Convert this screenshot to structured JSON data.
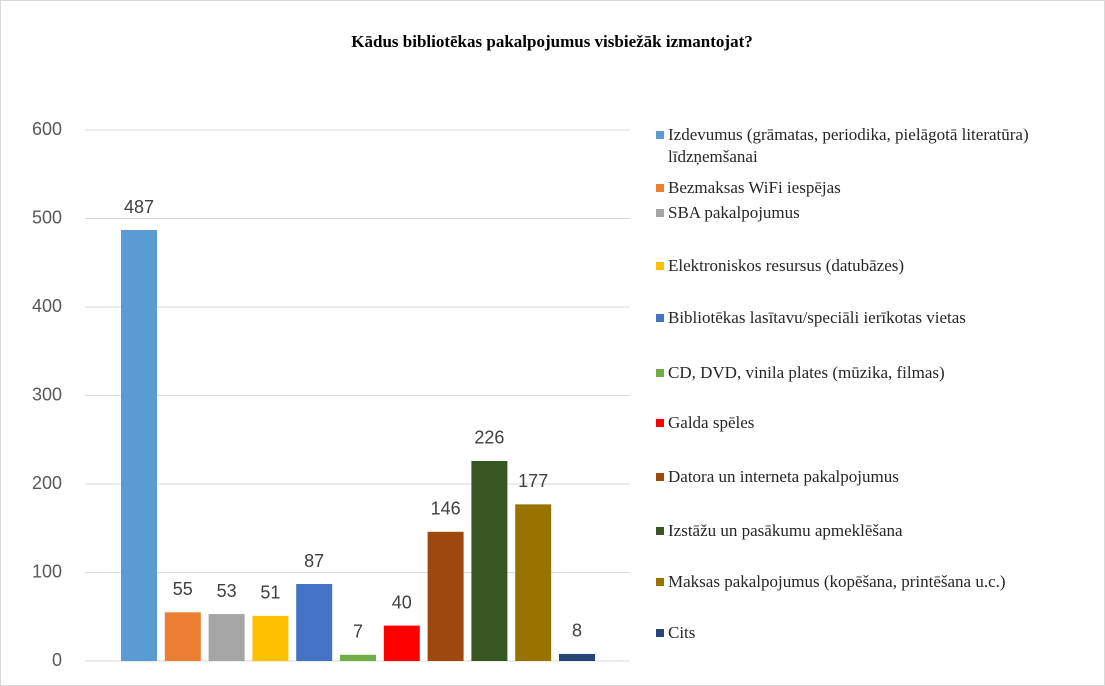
{
  "chart_data": {
    "type": "bar",
    "title": "Kādus bibliotēkas pakalpojumus visbiežāk izmantojat?",
    "ylim": [
      0,
      600
    ],
    "yticks": [
      0,
      100,
      200,
      300,
      400,
      500,
      600
    ],
    "grid": true,
    "legend": "right",
    "series": [
      {
        "name": "Izdevumus (grāmatas, periodika, pielāgotā literatūra) līdzņemšanai",
        "color": "#5b9bd5",
        "values": [
          487
        ]
      },
      {
        "name": "Bezmaksas WiFi iespējas",
        "color": "#ed7d31",
        "values": [
          55
        ]
      },
      {
        "name": "SBA pakalpojumus",
        "color": "#a5a5a5",
        "values": [
          53
        ]
      },
      {
        "name": "Elektroniskos resursus (datubāzes)",
        "color": "#ffc000",
        "values": [
          51
        ]
      },
      {
        "name": "Bibliotēkas lasītavu/speciāli ierīkotas vietas",
        "color": "#4472c4",
        "values": [
          87
        ]
      },
      {
        "name": "CD, DVD, vinila plates (mūzika, filmas)",
        "color": "#70ad47",
        "values": [
          7
        ]
      },
      {
        "name": "Galda spēles",
        "color": "#ff0000",
        "values": [
          40
        ]
      },
      {
        "name": "Datora un interneta pakalpojumus",
        "color": "#9e480e",
        "values": [
          146
        ]
      },
      {
        "name": "Izstāžu un pasākumu apmeklēšana",
        "color": "#375623",
        "values": [
          226
        ]
      },
      {
        "name": "Maksas pakalpojumus (kopēšana, printēšana u.c.)",
        "color": "#997300",
        "values": [
          177
        ]
      },
      {
        "name": "Cits",
        "color": "#264478",
        "values": [
          8
        ]
      }
    ]
  }
}
